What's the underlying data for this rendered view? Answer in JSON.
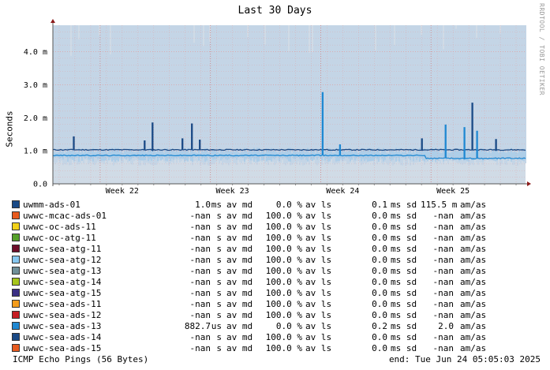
{
  "chart_data": {
    "type": "line",
    "title": "Last 30 Days",
    "ylabel": "Seconds",
    "xlabel": "",
    "ylim": [
      0,
      0.0048
    ],
    "y_ticks": [
      {
        "value": 0,
        "label": "0.0"
      },
      {
        "value": 0.001,
        "label": "1.0 m"
      },
      {
        "value": 0.002,
        "label": "2.0 m"
      },
      {
        "value": 0.003,
        "label": "3.0 m"
      },
      {
        "value": 0.004,
        "label": "4.0 m"
      }
    ],
    "x_range_days": [
      0,
      30
    ],
    "x_ticks": [
      {
        "day": 4.4,
        "label": "Week 22"
      },
      {
        "day": 11.4,
        "label": "Week 23"
      },
      {
        "day": 18.4,
        "label": "Week 24"
      },
      {
        "day": 25.4,
        "label": "Week 25"
      }
    ],
    "grid": true,
    "series": [
      {
        "name": "uwmm-ads-01",
        "color": "#1a4a86",
        "baseline": 0.00103,
        "spikes": [
          {
            "day": 1.3,
            "value": 0.00142
          },
          {
            "day": 5.75,
            "value": 0.0013
          },
          {
            "day": 6.35,
            "value": 0.00184
          },
          {
            "day": 8.2,
            "value": 0.00136
          },
          {
            "day": 8.75,
            "value": 0.00181
          },
          {
            "day": 9.25,
            "value": 0.00132
          },
          {
            "day": 23.35,
            "value": 0.00136
          },
          {
            "day": 26.6,
            "value": 0.00244
          },
          {
            "day": 28.1,
            "value": 0.00134
          }
        ]
      },
      {
        "name": "uwwc-sea-ads-13",
        "color": "#1f88d2",
        "baseline": 0.00086,
        "spikes": [
          {
            "day": 17.1,
            "value": 0.00276
          },
          {
            "day": 18.2,
            "value": 0.00118
          },
          {
            "day": 24.95,
            "value": 0.00178
          },
          {
            "day": 26.05,
            "value": 0.0017
          },
          {
            "day": 26.9,
            "value": 0.00159
          }
        ]
      }
    ]
  },
  "legend": [
    {
      "name": "uwmm-ads-01",
      "color": "#1a4a86",
      "avg": "1.0",
      "avg_unit": "ms",
      "avg_tag": "av md",
      "loss": "0.0 %",
      "loss_tag": "av ls",
      "sd": "0.1",
      "sd_unit": "ms sd",
      "am": "115.5 m",
      "am_unit": "am/as"
    },
    {
      "name": "uwwc-mcac-ads-01",
      "color": "#e85b1f",
      "avg": "-nan",
      "avg_unit": "s",
      "avg_tag": "av md",
      "loss": "100.0 %",
      "loss_tag": "av ls",
      "sd": "0.0",
      "sd_unit": "ms sd",
      "am": "-nan",
      "am_unit": "am/as"
    },
    {
      "name": "uwwc-oc-ads-11",
      "color": "#f2d21a",
      "avg": "-nan",
      "avg_unit": "s",
      "avg_tag": "av md",
      "loss": "100.0 %",
      "loss_tag": "av ls",
      "sd": "0.0",
      "sd_unit": "ms sd",
      "am": "-nan",
      "am_unit": "am/as"
    },
    {
      "name": "uwwc-oc-atg-11",
      "color": "#55a02a",
      "avg": "-nan",
      "avg_unit": "s",
      "avg_tag": "av md",
      "loss": "100.0 %",
      "loss_tag": "av ls",
      "sd": "0.0",
      "sd_unit": "ms sd",
      "am": "-nan",
      "am_unit": "am/as"
    },
    {
      "name": "uwwc-sea-atg-11",
      "color": "#6e0d2a",
      "avg": "-nan",
      "avg_unit": "s",
      "avg_tag": "av md",
      "loss": "100.0 %",
      "loss_tag": "av ls",
      "sd": "0.0",
      "sd_unit": "ms sd",
      "am": "-nan",
      "am_unit": "am/as"
    },
    {
      "name": "uwwc-sea-atg-12",
      "color": "#86c6ef",
      "avg": "-nan",
      "avg_unit": "s",
      "avg_tag": "av md",
      "loss": "100.0 %",
      "loss_tag": "av ls",
      "sd": "0.0",
      "sd_unit": "ms sd",
      "am": "-nan",
      "am_unit": "am/as"
    },
    {
      "name": "uwwc-sea-atg-13",
      "color": "#6f8f99",
      "avg": "-nan",
      "avg_unit": "s",
      "avg_tag": "av md",
      "loss": "100.0 %",
      "loss_tag": "av ls",
      "sd": "0.0",
      "sd_unit": "ms sd",
      "am": "-nan",
      "am_unit": "am/as"
    },
    {
      "name": "uwwc-sea-atg-14",
      "color": "#a6c51b",
      "avg": "-nan",
      "avg_unit": "s",
      "avg_tag": "av md",
      "loss": "100.0 %",
      "loss_tag": "av ls",
      "sd": "0.0",
      "sd_unit": "ms sd",
      "am": "-nan",
      "am_unit": "am/as"
    },
    {
      "name": "uwwc-sea-atg-15",
      "color": "#3a2f84",
      "avg": "-nan",
      "avg_unit": "s",
      "avg_tag": "av md",
      "loss": "100.0 %",
      "loss_tag": "av ls",
      "sd": "0.0",
      "sd_unit": "ms sd",
      "am": "-nan",
      "am_unit": "am/as"
    },
    {
      "name": "uwwc-sea-ads-11",
      "color": "#f39c1c",
      "avg": "-nan",
      "avg_unit": "s",
      "avg_tag": "av md",
      "loss": "100.0 %",
      "loss_tag": "av ls",
      "sd": "0.0",
      "sd_unit": "ms sd",
      "am": "-nan",
      "am_unit": "am/as"
    },
    {
      "name": "uwwc-sea-ads-12",
      "color": "#c61d24",
      "avg": "-nan",
      "avg_unit": "s",
      "avg_tag": "av md",
      "loss": "100.0 %",
      "loss_tag": "av ls",
      "sd": "0.0",
      "sd_unit": "ms sd",
      "am": "-nan",
      "am_unit": "am/as"
    },
    {
      "name": "uwwc-sea-ads-13",
      "color": "#1f88d2",
      "avg": "882.7",
      "avg_unit": "us",
      "avg_tag": "av md",
      "loss": "0.0 %",
      "loss_tag": "av ls",
      "sd": "0.2",
      "sd_unit": "ms sd",
      "am": "2.0",
      "am_unit": "am/as"
    },
    {
      "name": "uwwc-sea-ads-14",
      "color": "#1a4a86",
      "avg": "-nan",
      "avg_unit": "s",
      "avg_tag": "av md",
      "loss": "100.0 %",
      "loss_tag": "av ls",
      "sd": "0.0",
      "sd_unit": "ms sd",
      "am": "-nan",
      "am_unit": "am/as"
    },
    {
      "name": "uwwc-sea-ads-15",
      "color": "#e85b1f",
      "avg": "-nan",
      "avg_unit": "s",
      "avg_tag": "av md",
      "loss": "100.0 %",
      "loss_tag": "av ls",
      "sd": "0.0",
      "sd_unit": "ms sd",
      "am": "-nan",
      "am_unit": "am/as"
    }
  ],
  "footer": {
    "left": "ICMP Echo Pings (56 Bytes)",
    "right": "end: Tue Jun 24 05:05:03 2025"
  },
  "watermark": "RRDTOOL / TOBI OETIKER",
  "colors": {
    "plot_bg": "#d0dbe6",
    "grid": "#e0a0a0",
    "smoke": "#a9cce8"
  }
}
